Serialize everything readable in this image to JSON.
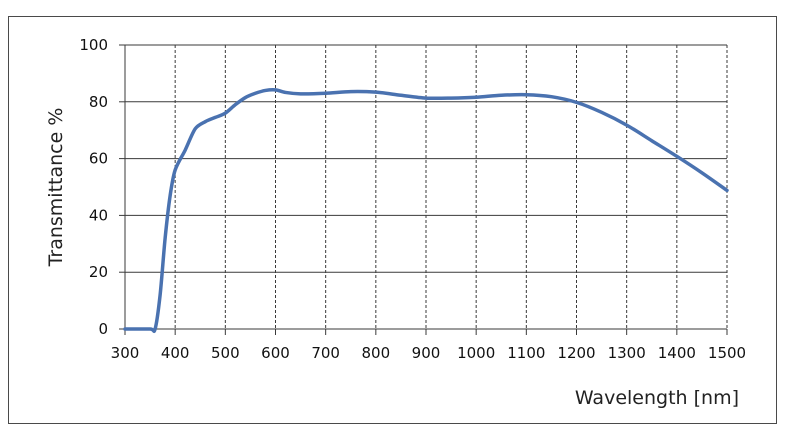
{
  "chart_data": {
    "type": "line",
    "title": "",
    "xlabel": "Wavelength [nm]",
    "ylabel": "Transmittance %",
    "xlim": [
      300,
      1500
    ],
    "ylim": [
      0,
      100
    ],
    "x_ticks": [
      300,
      400,
      500,
      600,
      700,
      800,
      900,
      1000,
      1100,
      1200,
      1300,
      1400,
      1500
    ],
    "y_ticks": [
      0,
      20,
      40,
      60,
      80,
      100
    ],
    "grid": {
      "x": "dashed",
      "y": "solid"
    },
    "legend": "none",
    "series": [
      {
        "color": "#4a72b0",
        "x": [
          300,
          350,
          360,
          370,
          380,
          390,
          400,
          420,
          440,
          460,
          480,
          500,
          520,
          540,
          560,
          580,
          600,
          620,
          650,
          700,
          750,
          800,
          850,
          900,
          950,
          1000,
          1050,
          1100,
          1150,
          1200,
          1250,
          1300,
          1350,
          1400,
          1450,
          1500
        ],
        "y": [
          0,
          0,
          0,
          12,
          32,
          47,
          56,
          63,
          70.5,
          73,
          74.5,
          76,
          79,
          81.5,
          83,
          84,
          84.2,
          83.3,
          82.8,
          83,
          83.6,
          83.4,
          82.3,
          81.3,
          81.3,
          81.6,
          82.3,
          82.5,
          81.8,
          79.8,
          76.3,
          71.8,
          66.3,
          60.8,
          55,
          48.8
        ]
      }
    ]
  }
}
